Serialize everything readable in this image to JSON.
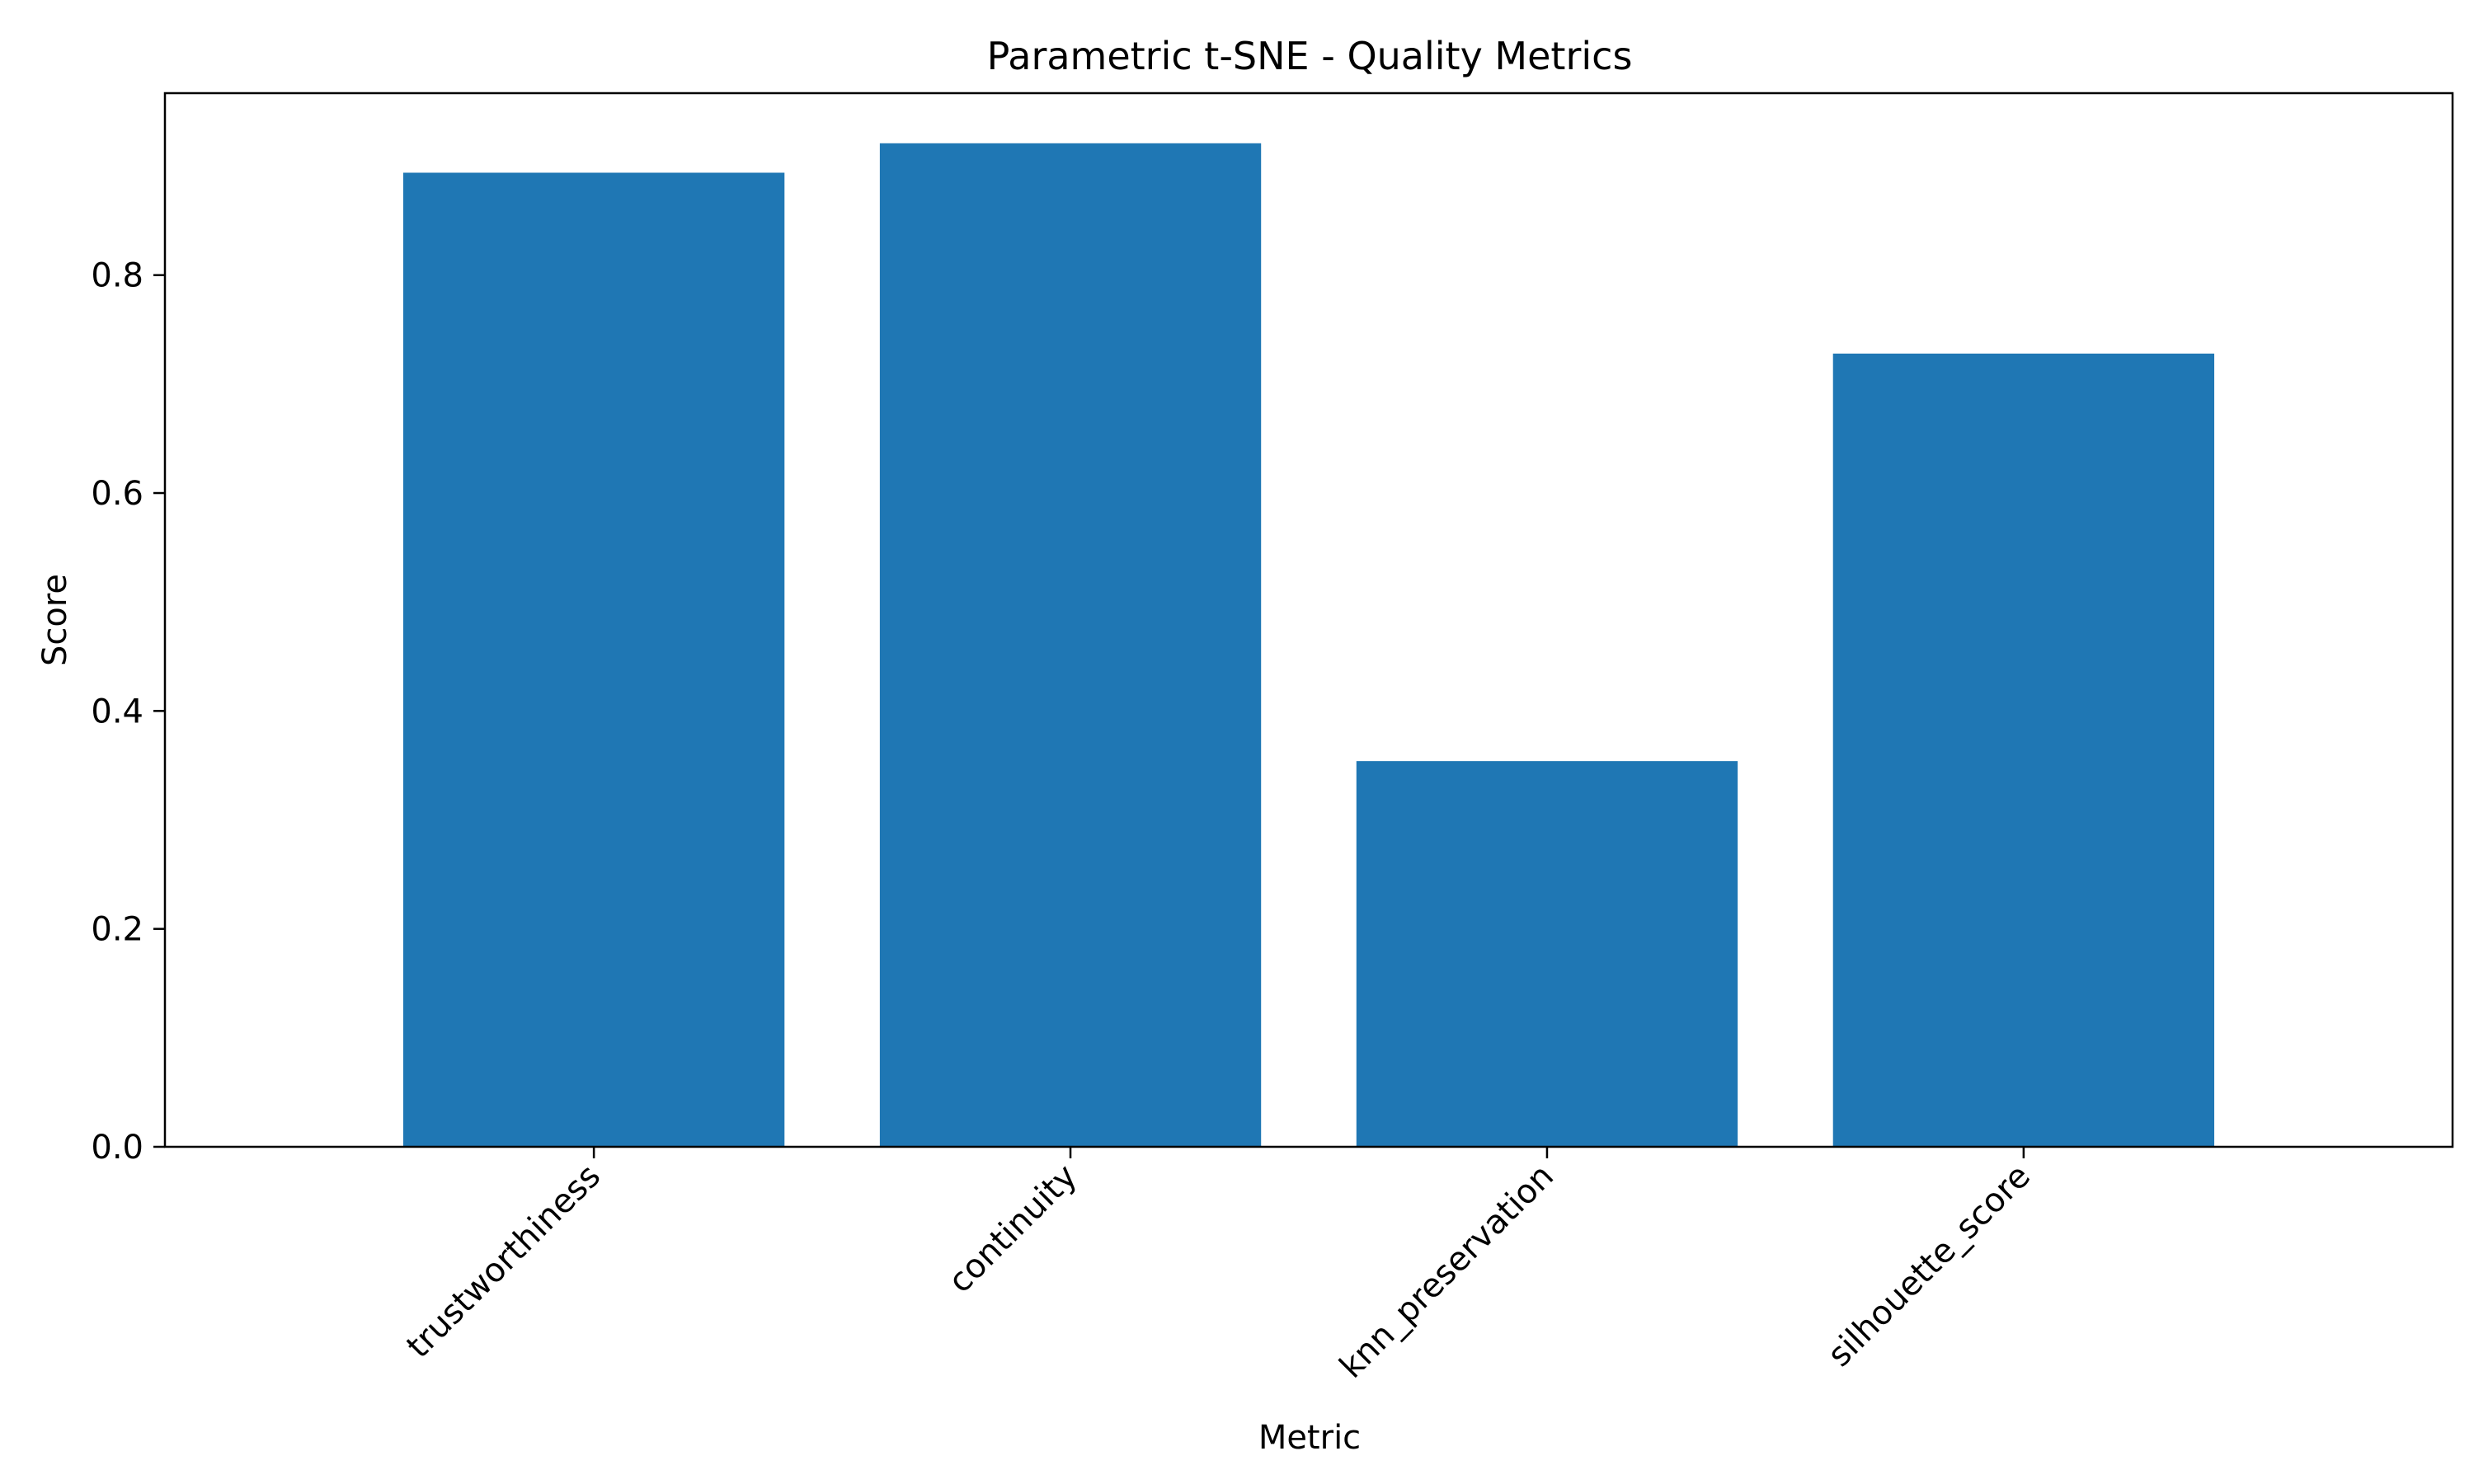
{
  "chart_data": {
    "type": "bar",
    "title": "Parametric t-SNE - Quality Metrics",
    "xlabel": "Metric",
    "ylabel": "Score",
    "categories": [
      "trustworthiness",
      "continuity",
      "knn_preservation",
      "silhouette_score"
    ],
    "values": [
      0.894,
      0.921,
      0.354,
      0.728
    ],
    "ylim": [
      0.0,
      0.967
    ],
    "yticks": [
      0.0,
      0.2,
      0.4,
      0.6,
      0.8
    ],
    "ytick_labels": [
      "0.0",
      "0.2",
      "0.4",
      "0.6",
      "0.8"
    ],
    "bar_color": "#1f77b4",
    "grid": false,
    "legend": "none"
  }
}
